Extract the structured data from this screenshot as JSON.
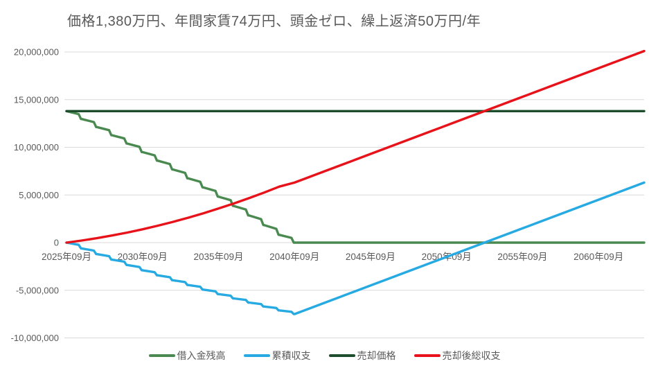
{
  "chart_data": {
    "type": "line",
    "title": "価格1,380万円、年間家賃74万円、頭金ゼロ、繰上返済50万円/年",
    "xlabel": "",
    "ylabel": "",
    "x_unit": "年月 (毎年9月)",
    "x_years": [
      2025,
      2026,
      2027,
      2028,
      2029,
      2030,
      2031,
      2032,
      2033,
      2034,
      2035,
      2036,
      2037,
      2038,
      2039,
      2040,
      2041,
      2042,
      2043,
      2044,
      2045,
      2046,
      2047,
      2048,
      2049,
      2050,
      2051,
      2052,
      2053,
      2054,
      2055,
      2056,
      2057,
      2058,
      2059,
      2060,
      2061,
      2062,
      2063
    ],
    "x_tick_labels": [
      "2025年09月",
      "2030年09月",
      "2035年09月",
      "2040年09月",
      "2045年09月",
      "2050年09月",
      "2055年09月",
      "2060年09月"
    ],
    "ylim": [
      -10000000,
      20000000
    ],
    "y_ticks": [
      {
        "value": 20000000,
        "label": "20,000,000"
      },
      {
        "value": 15000000,
        "label": "15,000,000"
      },
      {
        "value": 10000000,
        "label": "10,000,000"
      },
      {
        "value": 5000000,
        "label": "5,000,000"
      },
      {
        "value": 0,
        "label": "0"
      },
      {
        "value": -5000000,
        "label": "-5,000,000"
      },
      {
        "value": -10000000,
        "label": "-10,000,000"
      }
    ],
    "grid": true,
    "legend_position": "bottom",
    "text_color": "#595959",
    "grid_color": "#d9d9d9",
    "background_color": "#ffffff",
    "series": [
      {
        "id": "loan-balance",
        "name": "借入金残高",
        "color": "#4a8a50",
        "stepped": true,
        "values": [
          13800000,
          12970000,
          12125000,
          11265000,
          10390000,
          9500000,
          8595000,
          7675000,
          6740000,
          5790000,
          4825000,
          3845000,
          2850000,
          1840000,
          815000,
          0,
          0,
          0,
          0,
          0,
          0,
          0,
          0,
          0,
          0,
          0,
          0,
          0,
          0,
          0,
          0,
          0,
          0,
          0,
          0,
          0,
          0,
          0,
          0
        ]
      },
      {
        "id": "cumulative-balance",
        "name": "累積収支",
        "color": "#27aae2",
        "stepped": true,
        "values": [
          0,
          -612000,
          -1208000,
          -1788000,
          -2352000,
          -2900000,
          -3432000,
          -3948000,
          -4448000,
          -4932000,
          -5400000,
          -5852000,
          -6288000,
          -6708000,
          -7112000,
          -7500000,
          -6900000,
          -6300000,
          -5700000,
          -5100000,
          -4500000,
          -3900000,
          -3300000,
          -2700000,
          -2100000,
          -1500000,
          -900000,
          -300000,
          300000,
          900000,
          1500000,
          2100000,
          2700000,
          3300000,
          3900000,
          4500000,
          5100000,
          5700000,
          6300000
        ]
      },
      {
        "id": "sale-price",
        "name": "売却価格",
        "color": "#1d4d2c",
        "stepped": false,
        "values": [
          13800000,
          13800000,
          13800000,
          13800000,
          13800000,
          13800000,
          13800000,
          13800000,
          13800000,
          13800000,
          13800000,
          13800000,
          13800000,
          13800000,
          13800000,
          13800000,
          13800000,
          13800000,
          13800000,
          13800000,
          13800000,
          13800000,
          13800000,
          13800000,
          13800000,
          13800000,
          13800000,
          13800000,
          13800000,
          13800000,
          13800000,
          13800000,
          13800000,
          13800000,
          13800000,
          13800000,
          13800000,
          13800000,
          13800000
        ]
      },
      {
        "id": "total-after-sale",
        "name": "売却後総収支",
        "color": "#e8121a",
        "stepped": false,
        "values": [
          0,
          218000,
          467000,
          747000,
          1058000,
          1400000,
          1773000,
          2177000,
          2612000,
          3078000,
          3575000,
          4103000,
          4662000,
          5252000,
          5873000,
          6300000,
          6900000,
          7500000,
          8100000,
          8700000,
          9300000,
          9900000,
          10500000,
          11100000,
          11700000,
          12300000,
          12900000,
          13500000,
          14100000,
          14700000,
          15300000,
          15900000,
          16500000,
          17100000,
          17700000,
          18300000,
          18900000,
          19500000,
          20100000
        ]
      }
    ]
  }
}
